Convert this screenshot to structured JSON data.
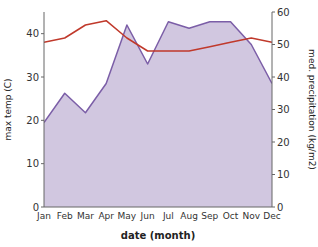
{
  "chart_data": {
    "type": "line",
    "categories": [
      "Jan",
      "Feb",
      "Mar",
      "Apr",
      "May",
      "Jun",
      "Jul",
      "Aug",
      "Sep",
      "Oct",
      "Nov",
      "Dec"
    ],
    "series": [
      {
        "type": "area",
        "axis": "y2",
        "color": "#7b5ea7",
        "values": [
          26,
          35,
          29,
          38,
          56,
          44,
          57,
          55,
          57,
          57,
          50,
          38
        ]
      },
      {
        "type": "line",
        "color": "#c0392b",
        "values": [
          38,
          39,
          42,
          43,
          39,
          36,
          36,
          36,
          37,
          38,
          39,
          38
        ]
      }
    ],
    "xlabel": "date (month)",
    "ylabel": "max temp (C)",
    "y2label": "med. precipitation (kg/m2)",
    "ylim": [
      0,
      45
    ],
    "yticks": [
      0,
      10,
      20,
      30,
      40
    ],
    "y2lim": [
      0,
      60
    ],
    "y2ticks": [
      0,
      10,
      20,
      30,
      40,
      50,
      60
    ],
    "grid": false
  }
}
